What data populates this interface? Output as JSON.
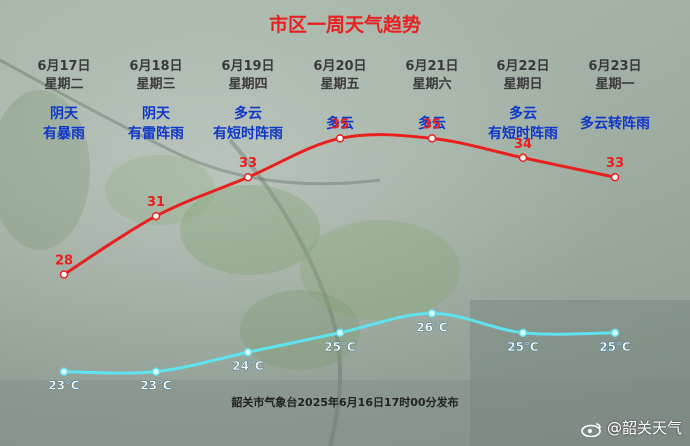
{
  "page": {
    "title": "市区一周天气趋势",
    "footer": "韶关市气象台2025年6月16日17时00分发布",
    "watermark": "@韶关天气"
  },
  "days": [
    {
      "date": "6月17日",
      "weekday": "星期二",
      "cond1": "阴天",
      "cond2": "有暴雨"
    },
    {
      "date": "6月18日",
      "weekday": "星期三",
      "cond1": "阴天",
      "cond2": "有雷阵雨"
    },
    {
      "date": "6月19日",
      "weekday": "星期四",
      "cond1": "多云",
      "cond2": "有短时阵雨"
    },
    {
      "date": "6月20日",
      "weekday": "星期五",
      "cond1": "多云",
      "cond2": ""
    },
    {
      "date": "6月21日",
      "weekday": "星期六",
      "cond1": "多云",
      "cond2": ""
    },
    {
      "date": "6月22日",
      "weekday": "星期日",
      "cond1": "多云",
      "cond2": "有短时阵雨"
    },
    {
      "date": "6月23日",
      "weekday": "星期一",
      "cond1": "多云转阵雨",
      "cond2": ""
    }
  ],
  "chart_data": {
    "type": "line",
    "title": "市区一周天气趋势",
    "categories": [
      "6月17日",
      "6月18日",
      "6月19日",
      "6月20日",
      "6月21日",
      "6月22日",
      "6月23日"
    ],
    "series": [
      {
        "values": [
          28,
          31,
          33,
          35,
          35,
          34,
          33
        ],
        "labels": [
          "28",
          "31",
          "33",
          "35",
          "35",
          "34",
          "33"
        ],
        "color": "#e8201f"
      },
      {
        "values": [
          23,
          23,
          24,
          25,
          26,
          25,
          25
        ],
        "labels": [
          "23°C",
          "23°C",
          "24°C",
          "25°C",
          "26°C",
          "25°C",
          "25°C"
        ],
        "color": "#5fe3ee"
      }
    ],
    "ylim": [
      20,
      38
    ],
    "grid": false
  },
  "colors": {
    "title": "#e8201f",
    "condition_text": "#1038c8",
    "high_line": "#e8201f",
    "low_line": "#5fe3ee"
  }
}
